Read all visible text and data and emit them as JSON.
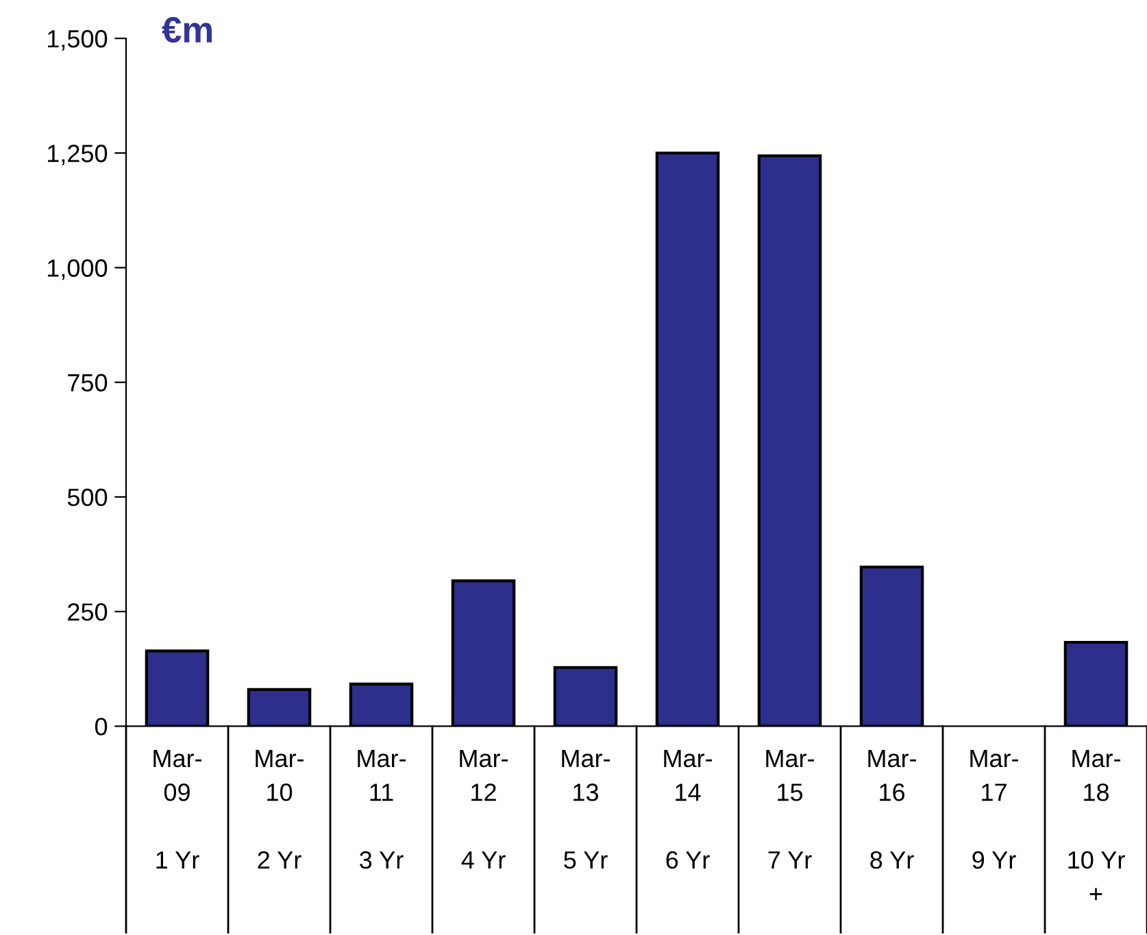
{
  "chart_data": {
    "type": "bar",
    "ylabel": "€m",
    "categories": [
      "Mar-\n09\n\n1 Yr",
      "Mar-\n10\n\n2 Yr",
      "Mar-\n11\n\n3 Yr",
      "Mar-\n12\n\n4 Yr",
      "Mar-\n13\n\n5 Yr",
      "Mar-\n14\n\n6 Yr",
      "Mar-\n15\n\n7 Yr",
      "Mar-\n16\n\n8 Yr",
      "Mar-\n17\n\n9 Yr",
      "Mar-\n18\n\n10 Yr\n+"
    ],
    "values": [
      164,
      80,
      92,
      317,
      128,
      1250,
      1244,
      347,
      null,
      183
    ],
    "color": "#2e2e8c",
    "ylim": [
      0,
      1500
    ],
    "yticks": [
      {
        "value": 0,
        "label": "0"
      },
      {
        "value": 250,
        "label": "250"
      },
      {
        "value": 500,
        "label": "500"
      },
      {
        "value": 750,
        "label": "750"
      },
      {
        "value": 1000,
        "label": "1,000"
      },
      {
        "value": 1250,
        "label": "1,250"
      },
      {
        "value": 1500,
        "label": "1,500"
      }
    ],
    "grid": false,
    "legend": false
  }
}
